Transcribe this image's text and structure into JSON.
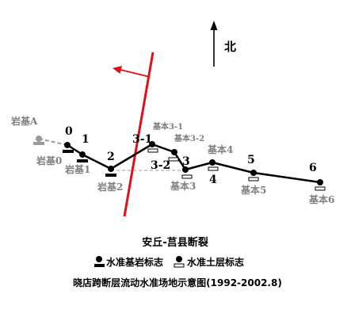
{
  "north_label": "北",
  "fault_name": "安丘-莒县断裂",
  "legend": {
    "bedrock_label": "水准基岩标志",
    "soil_label": "水准土层标志"
  },
  "caption": "晓店跨断层流动水准场地示意图(1992-2002.8)",
  "colors": {
    "fault": "#e0101a",
    "route": "#000000",
    "old_route": "#9a9a9a",
    "gray_label": "#808080"
  },
  "points": {
    "p0": "0",
    "p1": "1",
    "p2": "2",
    "p3_1": "3-1",
    "p3_2": "3-2",
    "p3": "3",
    "p4": "4",
    "p5": "5",
    "p6": "6"
  },
  "markers": {
    "jiA": "岩基A",
    "jiA_name": "岩基A",
    "ji0": "岩基0",
    "ji1": "岩基1",
    "ji2": "岩基2",
    "b3_1": "基本3-1",
    "b3_2": "基本3-2",
    "b3": "基本3",
    "b4": "基本4",
    "b5": "基本5",
    "b6": "基本6"
  }
}
